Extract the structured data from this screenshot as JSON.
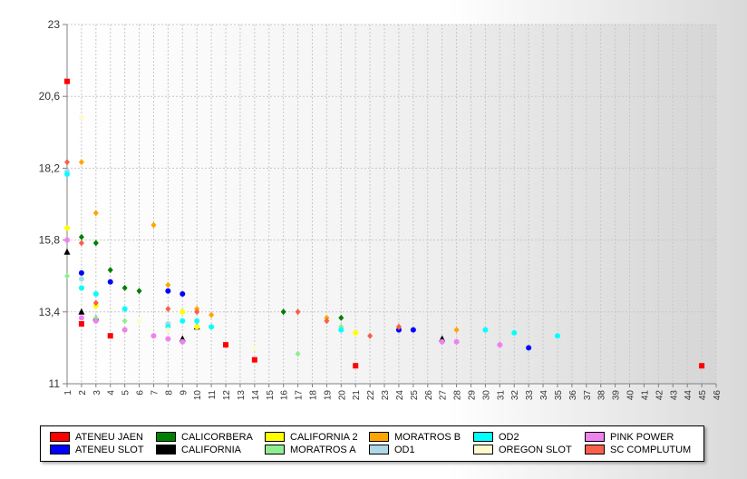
{
  "chart_data": {
    "type": "scatter",
    "x_ticks": [
      1,
      2,
      3,
      4,
      5,
      6,
      7,
      8,
      9,
      10,
      11,
      12,
      13,
      14,
      15,
      16,
      17,
      18,
      19,
      20,
      21,
      22,
      23,
      24,
      25,
      26,
      27,
      28,
      29,
      30,
      31,
      32,
      33,
      34,
      35,
      36,
      37,
      38,
      39,
      40,
      41,
      42,
      43,
      44,
      45,
      46
    ],
    "y_ticks": [
      "11",
      "13,4",
      "15,8",
      "18,2",
      "20,6",
      "23"
    ],
    "xlim": [
      1,
      46
    ],
    "ylim": [
      11,
      23
    ],
    "grid": true,
    "legend_position": "bottom",
    "series": [
      {
        "name": "ATENEU JAEN",
        "color": "#ff0000",
        "marker": "square",
        "points": [
          [
            1,
            21.1
          ],
          [
            2,
            13.0
          ],
          [
            4,
            12.6
          ],
          [
            12,
            12.3
          ],
          [
            14,
            11.8
          ],
          [
            21,
            11.6
          ],
          [
            45,
            11.6
          ]
        ]
      },
      {
        "name": "ATENEU SLOT",
        "color": "#0000ff",
        "marker": "circle",
        "points": [
          [
            2,
            14.7
          ],
          [
            4,
            14.4
          ],
          [
            8,
            14.1
          ],
          [
            9,
            14.0
          ],
          [
            24,
            12.8
          ],
          [
            25,
            12.8
          ],
          [
            33,
            12.2
          ]
        ]
      },
      {
        "name": "CALICORBERA",
        "color": "#008000",
        "marker": "diamond",
        "points": [
          [
            2,
            15.9
          ],
          [
            3,
            15.7
          ],
          [
            4,
            14.8
          ],
          [
            5,
            14.2
          ],
          [
            6,
            14.1
          ],
          [
            16,
            13.4
          ],
          [
            20,
            13.2
          ]
        ]
      },
      {
        "name": "CALIFORNIA",
        "color": "#000000",
        "marker": "triangle",
        "points": [
          [
            1,
            15.4
          ],
          [
            2,
            13.4
          ],
          [
            3,
            13.2
          ],
          [
            9,
            12.5
          ],
          [
            10,
            12.9
          ],
          [
            27,
            12.5
          ]
        ]
      },
      {
        "name": "CALIFORNIA 2",
        "color": "#ffff00",
        "marker": "circle",
        "points": [
          [
            1,
            16.2
          ],
          [
            2,
            14.2
          ],
          [
            3,
            13.6
          ],
          [
            9,
            13.4
          ],
          [
            10,
            12.9
          ],
          [
            21,
            12.7
          ]
        ]
      },
      {
        "name": "MORATROS A",
        "color": "#90ee90",
        "marker": "diamond",
        "points": [
          [
            1,
            14.6
          ],
          [
            3,
            13.2
          ],
          [
            5,
            13.1
          ],
          [
            17,
            12.0
          ],
          [
            20,
            12.9
          ]
        ]
      },
      {
        "name": "MORATROS B",
        "color": "#ffa500",
        "marker": "diamond",
        "points": [
          [
            2,
            18.4
          ],
          [
            3,
            16.7
          ],
          [
            7,
            16.3
          ],
          [
            8,
            14.3
          ],
          [
            10,
            13.5
          ],
          [
            11,
            13.3
          ],
          [
            19,
            13.2
          ],
          [
            24,
            12.9
          ],
          [
            28,
            12.8
          ]
        ]
      },
      {
        "name": "OD1",
        "color": "#add8e6",
        "marker": "circle",
        "points": [
          [
            1,
            18.1
          ],
          [
            2,
            14.5
          ],
          [
            3,
            14.0
          ],
          [
            8,
            13.0
          ]
        ]
      },
      {
        "name": "OD2",
        "color": "#00ffff",
        "marker": "circle",
        "points": [
          [
            1,
            18.0
          ],
          [
            2,
            14.2
          ],
          [
            3,
            14.0
          ],
          [
            5,
            13.5
          ],
          [
            8,
            12.9
          ],
          [
            9,
            13.1
          ],
          [
            10,
            13.1
          ],
          [
            11,
            12.9
          ],
          [
            20,
            12.8
          ],
          [
            30,
            12.8
          ],
          [
            32,
            12.7
          ],
          [
            35,
            12.6
          ]
        ]
      },
      {
        "name": "OREGON SLOT",
        "color": "#fffacd",
        "marker": "circle",
        "points": [
          [
            2,
            19.9
          ],
          [
            6,
            13.1
          ],
          [
            8,
            12.8
          ],
          [
            14,
            12.2
          ]
        ]
      },
      {
        "name": "PINK POWER",
        "color": "#ee82ee",
        "marker": "circle",
        "points": [
          [
            1,
            15.8
          ],
          [
            2,
            13.2
          ],
          [
            3,
            13.1
          ],
          [
            5,
            12.8
          ],
          [
            7,
            12.6
          ],
          [
            8,
            12.5
          ],
          [
            9,
            12.4
          ],
          [
            27,
            12.4
          ],
          [
            28,
            12.4
          ],
          [
            31,
            12.3
          ]
        ]
      },
      {
        "name": "SC COMPLUTUM",
        "color": "#fa5f4b",
        "marker": "diamond",
        "points": [
          [
            1,
            18.4
          ],
          [
            2,
            15.7
          ],
          [
            3,
            13.7
          ],
          [
            8,
            13.5
          ],
          [
            10,
            13.4
          ],
          [
            17,
            13.4
          ],
          [
            19,
            13.1
          ],
          [
            22,
            12.6
          ],
          [
            24,
            12.9
          ]
        ]
      }
    ]
  }
}
